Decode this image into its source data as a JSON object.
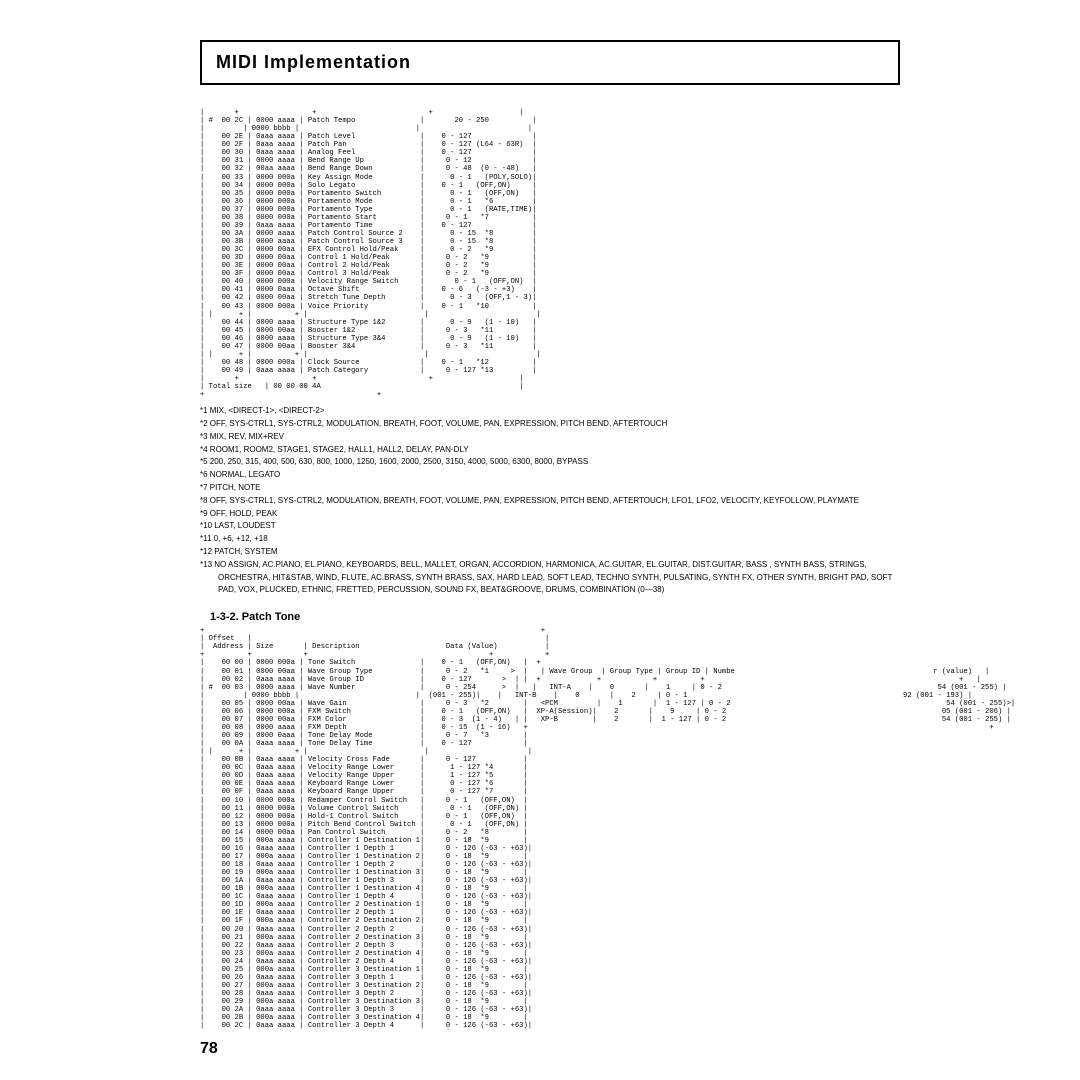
{
  "header_title": "MIDI Implementation",
  "page_number": "78",
  "table1": {
    "preline1": "|       +                 +                          +                    |",
    "preline2": "|       +                 +                          +                    |",
    "rows": [
      {
        "o": "#  00 2C",
        "s": "0000 aaaa",
        "d": "Patch Tempo",
        "v": "      20 - 250          |"
      },
      {
        "o": "       ",
        "s": "0000 bbbb",
        "d": "",
        "v": "                        |"
      },
      {
        "o": "   00 2E",
        "s": "0aaa aaaa",
        "d": "Patch Level",
        "v": "   0 - 127              |"
      },
      {
        "o": "   00 2F",
        "s": "0aaa aaaa",
        "d": "Patch Pan",
        "v": "   0 - 127 (L64 - 63R)  |"
      },
      {
        "o": "   00 30",
        "s": "0aaa aaaa",
        "d": "Analog Feel",
        "v": "   0 - 127              |"
      },
      {
        "o": "   00 31",
        "s": "0000 aaaa",
        "d": "Bend Range Up",
        "v": "    0 - 12              |"
      },
      {
        "o": "   00 32",
        "s": "00aa aaaa",
        "d": "Bend Range Down",
        "v": "    0 - 48  (0 - -48)   |"
      },
      {
        "o": "   00 33",
        "s": "0000 000a",
        "d": "Key Assign Mode",
        "v": "     0 - 1   (POLY,SOLO)|"
      },
      {
        "o": "   00 34",
        "s": "0000 000a",
        "d": "Solo Legato",
        "v": "   0 - 1   (OFF,ON)     |"
      },
      {
        "o": "   00 35",
        "s": "0000 000a",
        "d": "Portamento Switch",
        "v": "     0 - 1   (OFF,ON)   |"
      },
      {
        "o": "   00 36",
        "s": "0000 000a",
        "d": "Portamento Mode",
        "v": "     0 - 1   *6         |"
      },
      {
        "o": "   00 37",
        "s": "0000 000a",
        "d": "Portamento Type",
        "v": "     0 - 1   (RATE,TIME)|"
      },
      {
        "o": "   00 38",
        "s": "0000 000a",
        "d": "Portamento Start",
        "v": "    0 - 1   *7          |"
      },
      {
        "o": "   00 39",
        "s": "0aaa aaaa",
        "d": "Portamento Time",
        "v": "   0 - 127              |"
      },
      {
        "o": "   00 3A",
        "s": "0000 aaaa",
        "d": "Patch Control Source 2",
        "v": "     0 - 15  *8         |"
      },
      {
        "o": "   00 3B",
        "s": "0000 aaaa",
        "d": "Patch Control Source 3",
        "v": "     0 - 15  *8         |"
      },
      {
        "o": "   00 3C",
        "s": "0000 00aa",
        "d": "EFX Control Hold/Peak",
        "v": "     0 - 2   *9         |"
      },
      {
        "o": "   00 3D",
        "s": "0000 00aa",
        "d": "Control 1 Hold/Peak",
        "v": "    0 - 2   *9          |"
      },
      {
        "o": "   00 3E",
        "s": "0000 00aa",
        "d": "Control 2 Hold/Peak",
        "v": "    0 - 2   *9          |"
      },
      {
        "o": "   00 3F",
        "s": "0000 00aa",
        "d": "Control 3 Hold/Peak",
        "v": "    0 - 2   *9          |"
      },
      {
        "o": "   00 40",
        "s": "0000 000a",
        "d": "Velocity Range Switch",
        "v": "      0 - 1   (OFF,ON)  |"
      },
      {
        "o": "   00 41",
        "s": "0000 0aaa",
        "d": "Octave Shift",
        "v": "   0 - 6   (-3 - +3)    |"
      },
      {
        "o": "   00 42",
        "s": "0000 00aa",
        "d": "Stretch Tune Depth",
        "v": "     0 - 3   (OFF,1 - 3)|"
      },
      {
        "o": "   00 43",
        "s": "0000 000a",
        "d": "Voice Priority",
        "v": "   0 - 1   *10          |"
      },
      {
        "o": "|      +",
        "s": "         +",
        "d": "",
        "v": "                        |"
      },
      {
        "o": "   00 44",
        "s": "0000 aaaa",
        "d": "Structure Type 1&2",
        "v": "     0 - 9   (1 - 10)   |"
      },
      {
        "o": "   00 45",
        "s": "0000 00aa",
        "d": "Booster 1&2",
        "v": "    0 - 3   *11         |"
      },
      {
        "o": "   00 46",
        "s": "0000 aaaa",
        "d": "Structure Type 3&4",
        "v": "     0 - 9   (1 - 10)   |"
      },
      {
        "o": "   00 47",
        "s": "0000 00aa",
        "d": "Booster 3&4",
        "v": "    0 - 3   *11         |"
      },
      {
        "o": "|      +",
        "s": "         +",
        "d": "",
        "v": "                        |"
      },
      {
        "o": "   00 48",
        "s": "0000 000a",
        "d": "Clock Source",
        "v": "   0 - 1   *12          |"
      },
      {
        "o": "   00 49",
        "s": "0aaa aaaa",
        "d": "Patch Category",
        "v": "    0 - 127 *13         |"
      }
    ],
    "postline1": "|       +                 +                          +                    |",
    "totalsize": "| Total size   | 00 00 00 4A                                              |",
    "plus": "+                                        +"
  },
  "footnotes": [
    "*1   MIX, <DIRECT-1>, <DIRECT-2>",
    "*2   OFF, SYS-CTRL1, SYS-CTRL2, MODULATION, BREATH, FOOT, VOLUME, PAN, EXPRESSION, PITCH BEND, AFTERTOUCH",
    "*3   MIX, REV, MIX+REV",
    "*4   ROOM1, ROOM2, STAGE1, STAGE2, HALL1, HALL2, DELAY, PAN-DLY",
    "*5   200, 250, 315, 400, 500, 630, 800, 1000, 1250, 1600, 2000, 2500, 3150, 4000, 5000, 6300, 8000, BYPASS",
    "*6   NORMAL, LEGATO",
    "*7   PITCH, NOTE",
    "*8   OFF, SYS-CTRL1, SYS-CTRL2, MODULATION, BREATH, FOOT, VOLUME, PAN, EXPRESSION, PITCH BEND, AFTERTOUCH, LFO1, LFO2, VELOCITY, KEYFOLLOW, PLAYMATE",
    "*9   OFF, HOLD, PEAK",
    "*10  LAST, LOUDEST",
    "*11  0, +6, +12, +18",
    "*12  PATCH, SYSTEM",
    "*13  NO ASSIGN, AC.PIANO, EL.PIANO, KEYBOARDS, BELL, MALLET, ORGAN, ACCORDION, HARMONICA, AC.GUITAR, EL.GUITAR, DIST.GUITAR, BASS   , SYNTH BASS, STRINGS, ORCHESTRA, HIT&STAB, WIND, FLUTE, AC.BRASS, SYNTH BRASS, SAX, HARD LEAD, SOFT LEAD, TECHNO SYNTH, PULSATING, SYNTH FX, OTHER SYNTH, BRIGHT PAD, SOFT PAD, VOX, PLUCKED, ETHNIC, FRETTED, PERCUSSION, SOUND FX, BEAT&GROOVE, DRUMS, COMBINATION (0—38)"
  ],
  "section_sub": "1-3-2. Patch Tone",
  "table2": {
    "head1": "+                                                                              +",
    "head2": "| Offset   |                                                                    |",
    "head3": "|  Address | Size       | Description                    Data (Value)           |",
    "head4": "+          +            +                                          +            +",
    "rows": [
      {
        "o": "   00 00",
        "s": "0000 000a",
        "d": "Tone Switch",
        "v": "   0 - 1   (OFF,ON)   |  +"
      },
      {
        "o": "   00 01",
        "s": "0000 00aa",
        "d": "Wave Group Type",
        "v": "    0 - 2   *1     >  |   | Wave Group  | Group Type | Group ID | Numbe                                              r (value)   |"
      },
      {
        "o": "   00 02",
        "s": "0aaa aaaa",
        "d": "Wave Group ID",
        "v": "   0 - 127       >  | |  +             +            +          +                                                           +   |"
      },
      {
        "o": "#  00 03",
        "s": "0000 aaaa",
        "d": "Wave Number",
        "v": "    0 - 254      >  |   |   INT-A    |    0       |    1     | 0 - 2                                                  54 (001 - 255) |"
      },
      {
        "o": "       ",
        "s": "0000 bbbb",
        "d": "",
        "v": " (001 - 255)|    |   INT-B    |    0       |    2     | 0 - 1                                                  92 (001 - 193) |"
      },
      {
        "o": "   00 05",
        "s": "0000 00aa",
        "d": "Wave Gain",
        "v": "    0 - 3   *2        |   <PCM         |    1       |  1 - 127 | 0 - 2                                                  54 (001 - 255)>|"
      },
      {
        "o": "   00 06",
        "s": "0000 000a",
        "d": "FXM Switch",
        "v": "   0 - 1   (OFF,ON)   |  XP-A(Session)|    2       |    9     | 0 - 2                                                  05 (001 - 206) |"
      },
      {
        "o": "   00 07",
        "s": "0000 00aa",
        "d": "FXM Color",
        "v": "   0 - 3  (1 - 4)   | |   XP-B        |    2       |  1 - 127 | 0 - 2                                                  54 (001 - 255) |"
      },
      {
        "o": "   00 08",
        "s": "0000 aaaa",
        "d": "FXM Depth",
        "v": "   0 - 15  (1 - 16)   +                                                                                                           +"
      },
      {
        "o": "   00 09",
        "s": "0000 0aaa",
        "d": "Tone Delay Mode",
        "v": "    0 - 7   *3        |"
      },
      {
        "o": "   00 0A",
        "s": "0aaa aaaa",
        "d": "Tone Delay Time",
        "v": "   0 - 127            |"
      },
      {
        "o": "|      +",
        "s": "         +",
        "d": "",
        "v": "                      |"
      },
      {
        "o": "   00 0B",
        "s": "0aaa aaaa",
        "d": "Velocity Cross Fade",
        "v": "    0 - 127           |"
      },
      {
        "o": "   00 0C",
        "s": "0aaa aaaa",
        "d": "Velocity Range Lower",
        "v": "     1 - 127 *4       |"
      },
      {
        "o": "   00 0D",
        "s": "0aaa aaaa",
        "d": "Velocity Range Upper",
        "v": "     1 - 127 *5       |"
      },
      {
        "o": "   00 0E",
        "s": "0aaa aaaa",
        "d": "Keyboard Range Lower",
        "v": "     0 - 127 *6       |"
      },
      {
        "o": "   00 0F",
        "s": "0aaa aaaa",
        "d": "Keyboard Range Upper",
        "v": "     0 - 127 *7       |"
      },
      {
        "o": "   00 10",
        "s": "0000 000a",
        "d": "Redamper Control Switch",
        "v": "    0 - 1   (OFF,ON)  |"
      },
      {
        "o": "   00 11",
        "s": "0000 000a",
        "d": "Volume Control Switch",
        "v": "     0 - 1   (OFF,ON) |"
      },
      {
        "o": "   00 12",
        "s": "0000 000a",
        "d": "Hold-1 Control Switch",
        "v": "    0 - 1   (OFF,ON)  |"
      },
      {
        "o": "   00 13",
        "s": "0000 000a",
        "d": "Pitch Bend Control Switch",
        "v": "     0 - 1   (OFF,ON) |"
      },
      {
        "o": "   00 14",
        "s": "0000 00aa",
        "d": "Pan Control Switch",
        "v": "    0 - 2   *8        |"
      },
      {
        "o": "   00 15",
        "s": "000a aaaa",
        "d": "Controller 1 Destination 1",
        "v": "    0 - 18  *9        |"
      },
      {
        "o": "   00 16",
        "s": "0aaa aaaa",
        "d": "Controller 1 Depth 1",
        "v": "    0 - 126 (-63 - +63)|"
      },
      {
        "o": "   00 17",
        "s": "000a aaaa",
        "d": "Controller 1 Destination 2",
        "v": "    0 - 18  *9        |"
      },
      {
        "o": "   00 18",
        "s": "0aaa aaaa",
        "d": "Controller 1 Depth 2",
        "v": "    0 - 126 (-63 - +63)|"
      },
      {
        "o": "   00 19",
        "s": "000a aaaa",
        "d": "Controller 1 Destination 3",
        "v": "    0 - 18  *9        |"
      },
      {
        "o": "   00 1A",
        "s": "0aaa aaaa",
        "d": "Controller 1 Depth 3",
        "v": "    0 - 126 (-63 - +63)|"
      },
      {
        "o": "   00 1B",
        "s": "000a aaaa",
        "d": "Controller 1 Destination 4",
        "v": "    0 - 18  *9        |"
      },
      {
        "o": "   00 1C",
        "s": "0aaa aaaa",
        "d": "Controller 1 Depth 4",
        "v": "    0 - 126 (-63 - +63)|"
      },
      {
        "o": "   00 1D",
        "s": "000a aaaa",
        "d": "Controller 2 Destination 1",
        "v": "    0 - 18  *9        |"
      },
      {
        "o": "   00 1E",
        "s": "0aaa aaaa",
        "d": "Controller 2 Depth 1",
        "v": "    0 - 126 (-63 - +63)|"
      },
      {
        "o": "   00 1F",
        "s": "000a aaaa",
        "d": "Controller 2 Destination 2",
        "v": "    0 - 18  *9        |"
      },
      {
        "o": "   00 20",
        "s": "0aaa aaaa",
        "d": "Controller 2 Depth 2",
        "v": "    0 - 126 (-63 - +63)|"
      },
      {
        "o": "   00 21",
        "s": "000a aaaa",
        "d": "Controller 2 Destination 3",
        "v": "    0 - 18  *9        |"
      },
      {
        "o": "   00 22",
        "s": "0aaa aaaa",
        "d": "Controller 2 Depth 3",
        "v": "    0 - 126 (-63 - +63)|"
      },
      {
        "o": "   00 23",
        "s": "000a aaaa",
        "d": "Controller 2 Destination 4",
        "v": "    0 - 18  *9        |"
      },
      {
        "o": "   00 24",
        "s": "0aaa aaaa",
        "d": "Controller 2 Depth 4",
        "v": "    0 - 126 (-63 - +63)|"
      },
      {
        "o": "   00 25",
        "s": "000a aaaa",
        "d": "Controller 3 Destination 1",
        "v": "    0 - 18  *9        |"
      },
      {
        "o": "   00 26",
        "s": "0aaa aaaa",
        "d": "Controller 3 Depth 1",
        "v": "    0 - 126 (-63 - +63)|"
      },
      {
        "o": "   00 27",
        "s": "000a aaaa",
        "d": "Controller 3 Destination 2",
        "v": "    0 - 18  *9        |"
      },
      {
        "o": "   00 28",
        "s": "0aaa aaaa",
        "d": "Controller 3 Depth 2",
        "v": "    0 - 126 (-63 - +63)|"
      },
      {
        "o": "   00 29",
        "s": "000a aaaa",
        "d": "Controller 3 Destination 3",
        "v": "    0 - 18  *9        |"
      },
      {
        "o": "   00 2A",
        "s": "0aaa aaaa",
        "d": "Controller 3 Depth 3",
        "v": "    0 - 126 (-63 - +63)|"
      },
      {
        "o": "   00 2B",
        "s": "000a aaaa",
        "d": "Controller 3 Destination 4",
        "v": "    0 - 18  *9        |"
      },
      {
        "o": "   00 2C",
        "s": "0aaa aaaa",
        "d": "Controller 3 Depth 4",
        "v": "    0 - 126 (-63 - +63)|"
      }
    ]
  }
}
